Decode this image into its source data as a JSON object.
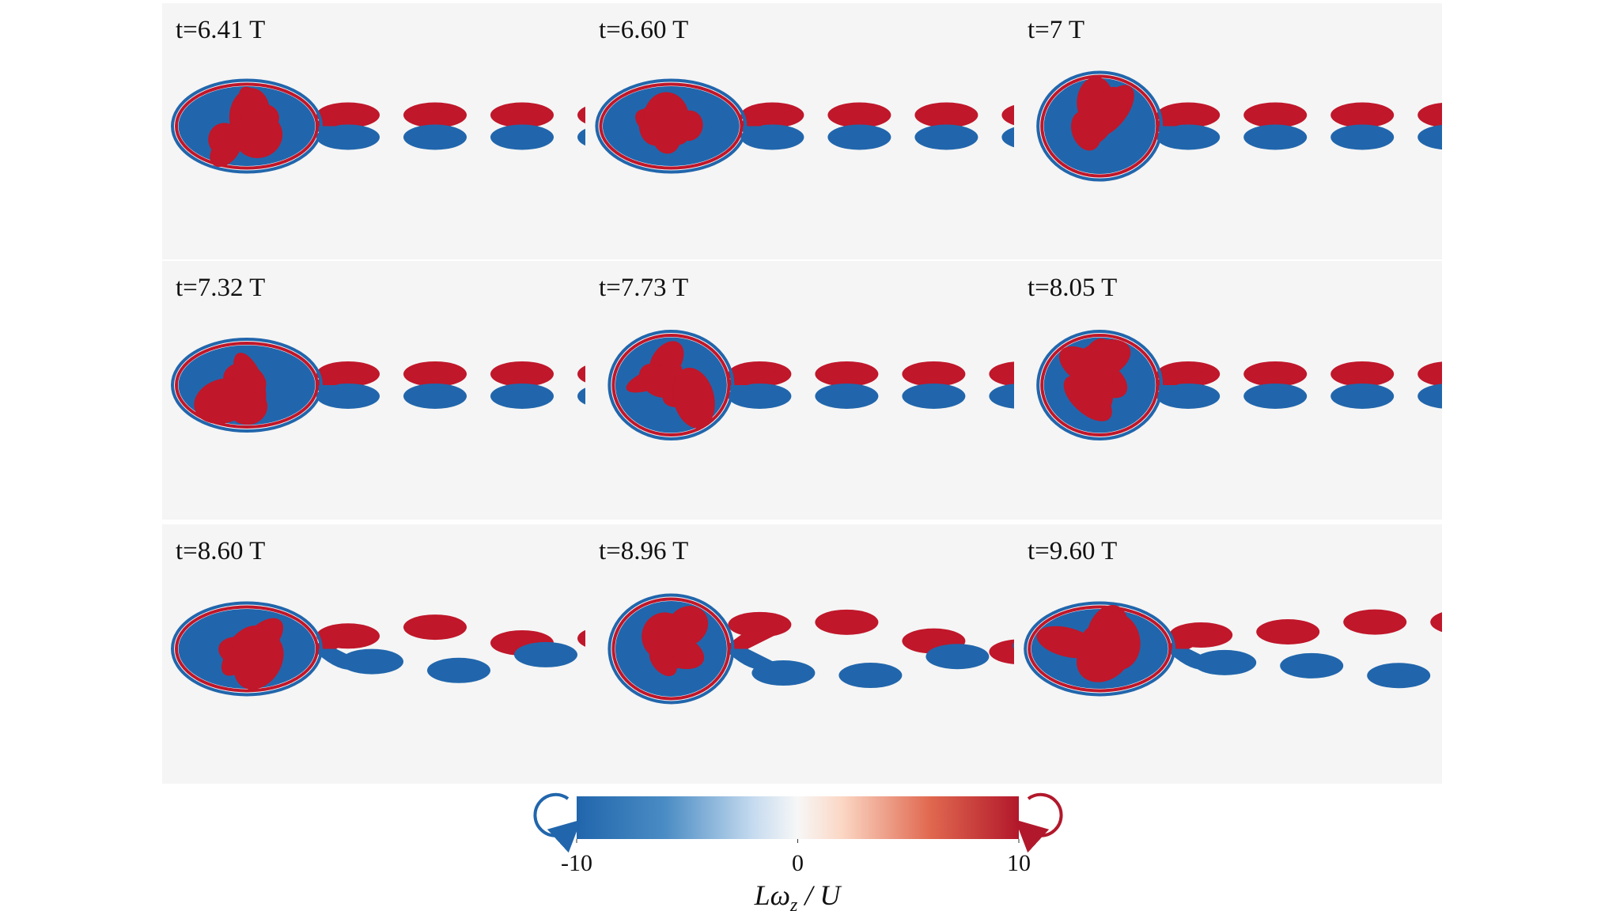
{
  "panels": [
    {
      "label": "t=6.41 T"
    },
    {
      "label": "t=6.60 T"
    },
    {
      "label": "t=7 T"
    },
    {
      "label": "t=7.32 T"
    },
    {
      "label": "t=7.73 T"
    },
    {
      "label": "t=8.05 T"
    },
    {
      "label": "t=8.60 T"
    },
    {
      "label": "t=8.96 T"
    },
    {
      "label": "t=9.60 T"
    }
  ],
  "colorbar": {
    "lim": [
      -10,
      10
    ],
    "ticks": [
      -10,
      0,
      10
    ],
    "label": {
      "main": "Lω",
      "sub": "z",
      "rest": " / U"
    }
  }
}
